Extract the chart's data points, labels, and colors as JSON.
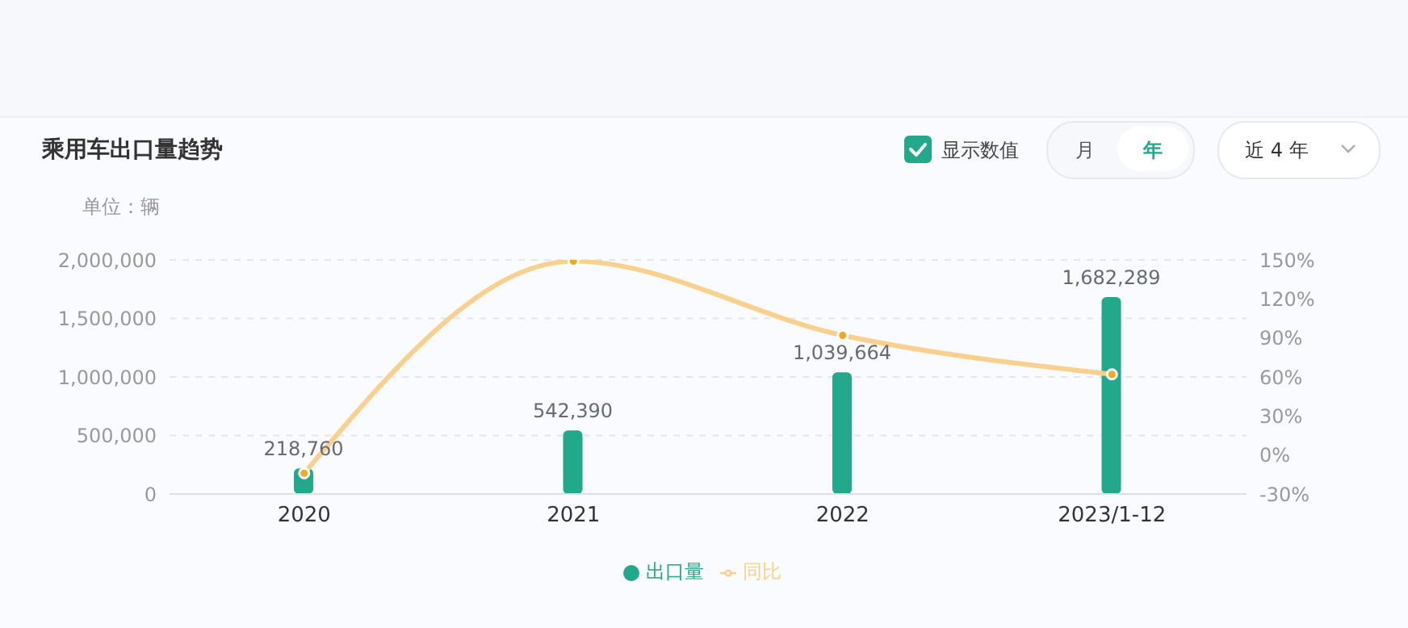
{
  "chart_data": {
    "type": "bar",
    "title": "乘用车出口量趋势",
    "ylabel": "单位：辆",
    "annotations": [
      "显示数值",
      "月",
      "年",
      "近 4 年"
    ],
    "categories": [
      "2020",
      "2021",
      "2022",
      "2023/1-12"
    ],
    "series": [
      {
        "name": "出口量",
        "color": "#22a88a",
        "values": [
          218760,
          542390,
          1039664,
          1682289
        ],
        "value_labels": [
          "218,760",
          "542,390",
          "1,039,664",
          "1,682,289"
        ]
      },
      {
        "name": "同比",
        "type": "line",
        "axis": "y2",
        "color": "#f9d08e",
        "values": [
          -14,
          149,
          92,
          62
        ]
      }
    ],
    "ylim": [
      0,
      2000000
    ],
    "yticks": [
      0,
      {
        "value": 500000,
        "label": "500,000"
      },
      {
        "value": 1000000,
        "label": "1,000,000"
      },
      {
        "value": 1500000,
        "label": "1,500,000"
      },
      {
        "value": 2000000,
        "label": "2,000,000"
      }
    ],
    "y2lim": [
      -30,
      150
    ],
    "y2ticks": [
      {
        "value": -30,
        "label": "-30%"
      },
      {
        "value": 0,
        "label": "0%"
      },
      {
        "value": 30,
        "label": "30%"
      },
      {
        "value": 60,
        "label": "60%"
      },
      {
        "value": 90,
        "label": "90%"
      },
      {
        "value": 120,
        "label": "120%"
      },
      {
        "value": 150,
        "label": "150%"
      }
    ],
    "grid": "y",
    "legend": "bottom",
    "marker": "circle"
  }
}
